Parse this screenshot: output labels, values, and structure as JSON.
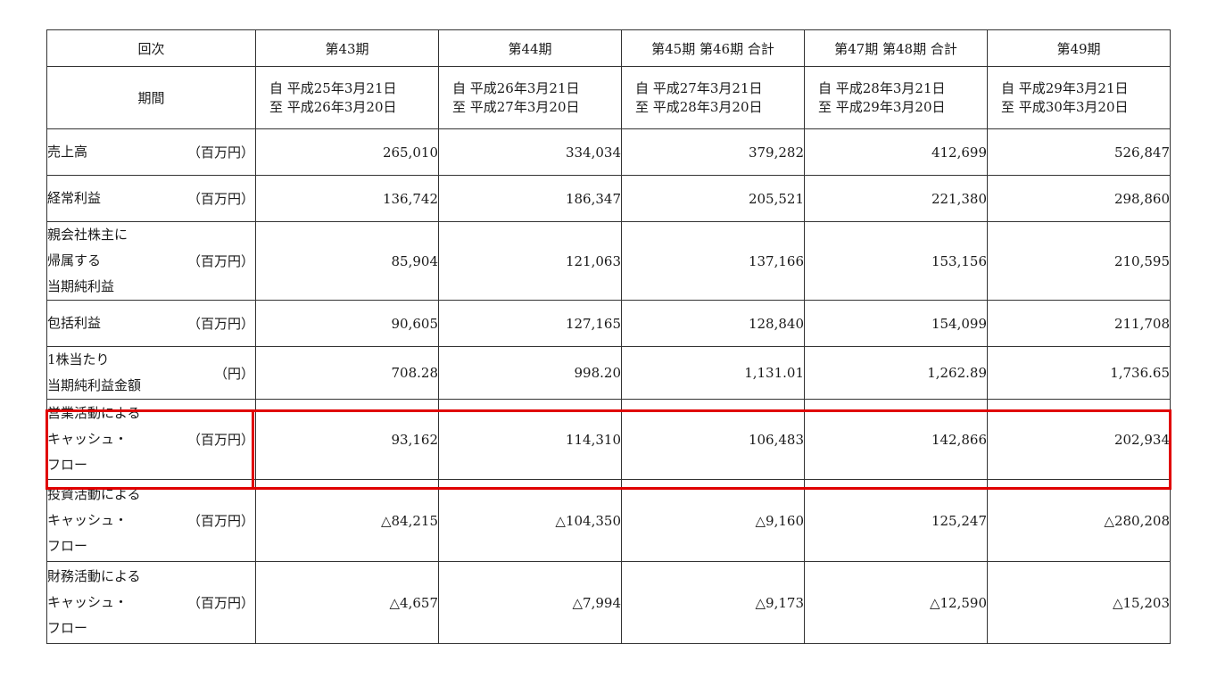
{
  "header": {
    "kaiji_label": "回次",
    "kikan_label": "期間",
    "columns": [
      {
        "label": "第43期",
        "from": "自 平成25年3月21日",
        "to": "至 平成26年3月20日"
      },
      {
        "label": "第44期",
        "from": "自 平成26年3月21日",
        "to": "至 平成27年3月20日"
      },
      {
        "label": "第45期 第46期 合計",
        "from": "自 平成27年3月21日",
        "to": "至 平成28年3月20日"
      },
      {
        "label": "第47期 第48期 合計",
        "from": "自 平成28年3月21日",
        "to": "至 平成29年3月20日"
      },
      {
        "label": "第49期",
        "from": "自 平成29年3月21日",
        "to": "至 平成30年3月20日"
      }
    ]
  },
  "rows": [
    {
      "label_lines": [
        "売上高"
      ],
      "unit": "（百万円）",
      "values": [
        "265,010",
        "334,034",
        "379,282",
        "412,699",
        "526,847"
      ]
    },
    {
      "label_lines": [
        "経常利益"
      ],
      "unit": "（百万円）",
      "values": [
        "136,742",
        "186,347",
        "205,521",
        "221,380",
        "298,860"
      ]
    },
    {
      "label_lines": [
        "親会社株主に",
        "帰属する",
        "当期純利益"
      ],
      "unit": "（百万円）",
      "values": [
        "85,904",
        "121,063",
        "137,166",
        "153,156",
        "210,595"
      ]
    },
    {
      "label_lines": [
        "包括利益"
      ],
      "unit": "（百万円）",
      "values": [
        "90,605",
        "127,165",
        "128,840",
        "154,099",
        "211,708"
      ]
    },
    {
      "label_lines": [
        "1株当たり",
        "当期純利益金額"
      ],
      "unit": "（円）",
      "values": [
        "708.28",
        "998.20",
        "1,131.01",
        "1,262.89",
        "1,736.65"
      ]
    },
    {
      "label_lines": [
        "営業活動による",
        "キャッシュ・",
        "フロー"
      ],
      "unit": "（百万円）",
      "values": [
        "93,162",
        "114,310",
        "106,483",
        "142,866",
        "202,934"
      ]
    },
    {
      "label_lines": [
        "投資活動による",
        "キャッシュ・",
        "フロー"
      ],
      "unit": "（百万円）",
      "values": [
        "△84,215",
        "△104,350",
        "△9,160",
        "125,247",
        "△280,208"
      ]
    },
    {
      "label_lines": [
        "財務活動による",
        "キャッシュ・",
        "フロー"
      ],
      "unit": "（百万円）",
      "values": [
        "△4,657",
        "△7,994",
        "△9,173",
        "△12,590",
        "△15,203"
      ]
    }
  ],
  "highlight": {
    "row_index": 5,
    "color": "#e00000"
  }
}
